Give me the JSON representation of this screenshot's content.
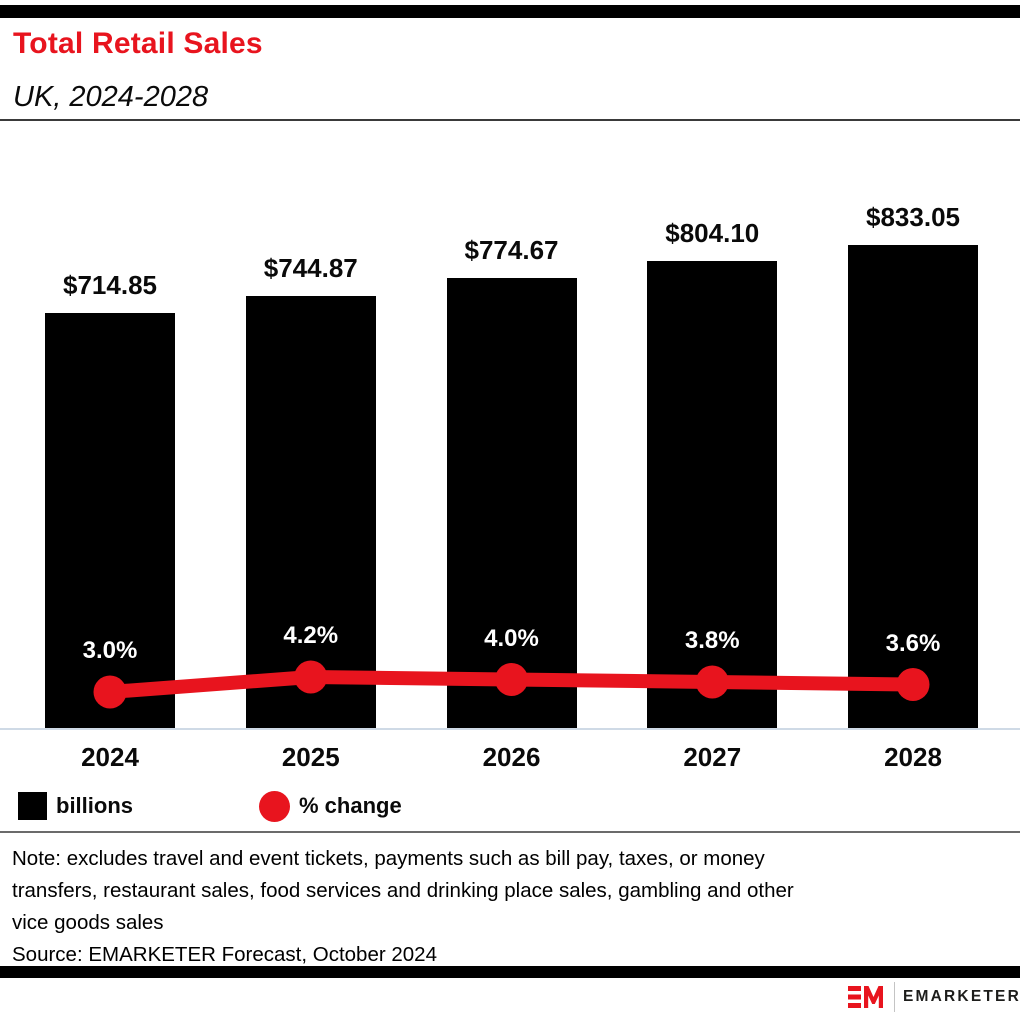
{
  "header": {
    "title": "Total Retail Sales",
    "subtitle": "UK, 2024-2028"
  },
  "chart_data": {
    "type": "bar",
    "title": "Total Retail Sales",
    "subtitle": "UK, 2024-2028",
    "categories": [
      "2024",
      "2025",
      "2026",
      "2027",
      "2028"
    ],
    "series": [
      {
        "name": "billions",
        "type": "bar",
        "unit": "$ billions",
        "values": [
          714.85,
          744.87,
          774.67,
          804.1,
          833.05
        ],
        "labels": [
          "$714.85",
          "$744.87",
          "$774.67",
          "$804.10",
          "$833.05"
        ],
        "color": "#000000"
      },
      {
        "name": "% change",
        "type": "line",
        "unit": "%",
        "values": [
          3.0,
          4.2,
          4.0,
          3.8,
          3.6
        ],
        "labels": [
          "3.0%",
          "4.2%",
          "4.0%",
          "3.8%",
          "3.6%"
        ],
        "color": "#e8141e"
      }
    ],
    "legend": [
      {
        "label": "billions",
        "swatch": "square",
        "color": "#000000"
      },
      {
        "label": "% change",
        "swatch": "circle",
        "color": "#e8141e"
      }
    ],
    "legend_position": "bottom-left",
    "grid": false,
    "ylim_bar": [
      0,
      880
    ],
    "xlabel": "",
    "ylabel": ""
  },
  "notes": {
    "lines": [
      "Note: excludes travel and event tickets, payments such as bill pay, taxes, or money",
      "transfers, restaurant sales, food services and drinking place sales, gambling and other",
      "vice goods sales"
    ],
    "source": "Source: EMARKETER Forecast, October 2024"
  },
  "footer": {
    "brand": "EMARKETER",
    "logo": "EM-mark-icon"
  },
  "colors": {
    "accent_red": "#e8141e",
    "bar_black": "#000000",
    "axis_line_blue": "#cfdae6",
    "rule_dark": "#3a3a3a",
    "rule_gray": "#6b6b6b",
    "background": "#ffffff"
  }
}
